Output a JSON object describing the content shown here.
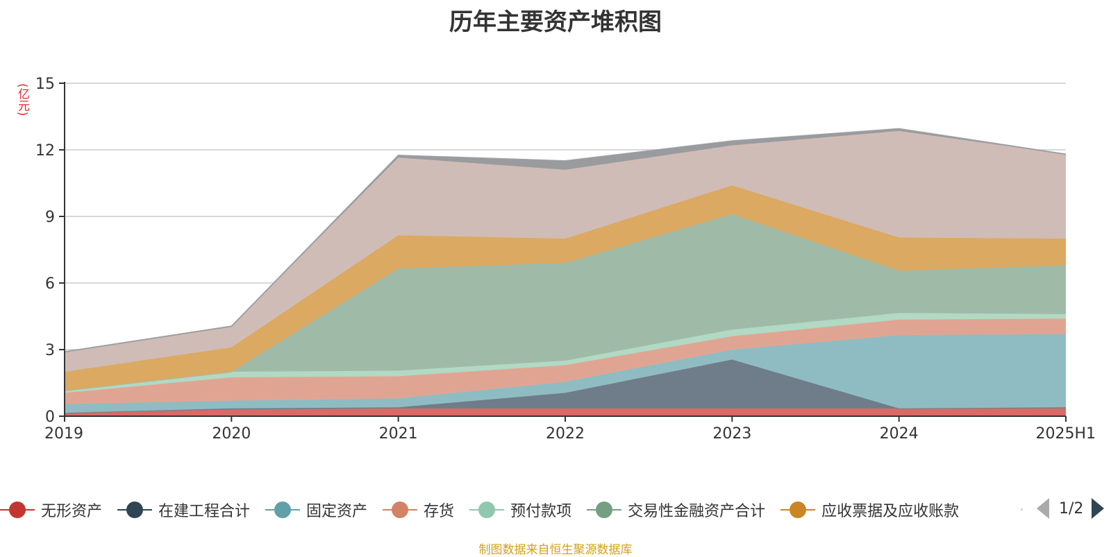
{
  "title": "历年主要资产堆积图",
  "y_unit": "(亿元)",
  "source": "制图数据来自恒生聚源数据库",
  "pager": {
    "text": "1/2"
  },
  "legend": [
    {
      "name": "无形资产",
      "color": "#c23531"
    },
    {
      "name": "在建工程合计",
      "color": "#2f4554"
    },
    {
      "name": "固定资产",
      "color": "#61a0a8"
    },
    {
      "name": "存货",
      "color": "#d48265"
    },
    {
      "name": "预付款项",
      "color": "#91c7ae"
    },
    {
      "name": "交易性金融资产合计",
      "color": "#749f83"
    },
    {
      "name": "应收票据及应收账款",
      "color": "#ca8622"
    }
  ],
  "chart_data": {
    "type": "area",
    "stacked": true,
    "ylim": [
      0,
      15
    ],
    "yticks": [
      0,
      3,
      6,
      9,
      12,
      15
    ],
    "grid": true,
    "categories": [
      "2019",
      "2020",
      "2021",
      "2022",
      "2023",
      "2024",
      "2025H1"
    ],
    "series": [
      {
        "name": "无形资产",
        "color": "#c23531",
        "fill": "#d96a66",
        "values": [
          0.15,
          0.3,
          0.35,
          0.35,
          0.35,
          0.35,
          0.35
        ]
      },
      {
        "name": "在建工程合计",
        "color": "#2f4554",
        "fill": "#6e7d89",
        "values": [
          0.0,
          0.05,
          0.05,
          0.7,
          2.2,
          0.0,
          0.05
        ]
      },
      {
        "name": "固定资产",
        "color": "#61a0a8",
        "fill": "#8fbcc2",
        "values": [
          0.4,
          0.35,
          0.4,
          0.5,
          0.45,
          3.3,
          3.3
        ]
      },
      {
        "name": "存货",
        "color": "#d48265",
        "fill": "#e0a592",
        "values": [
          0.5,
          1.05,
          1.0,
          0.75,
          0.6,
          0.7,
          0.7
        ]
      },
      {
        "name": "预付款项",
        "color": "#91c7ae",
        "fill": "#b1d9c4",
        "values": [
          0.1,
          0.25,
          0.25,
          0.2,
          0.3,
          0.3,
          0.2
        ]
      },
      {
        "name": "交易性金融资产合计",
        "color": "#749f83",
        "fill": "#9fbba8",
        "values": [
          0.0,
          0.0,
          4.6,
          4.4,
          5.2,
          1.9,
          2.2
        ]
      },
      {
        "name": "应收票据及应收账款",
        "color": "#ca8622",
        "fill": "#dba962",
        "values": [
          0.85,
          1.1,
          1.5,
          1.1,
          1.3,
          1.5,
          1.2
        ]
      },
      {
        "name": "",
        "color": "#bda29a",
        "fill": "#d0bcb6",
        "values": [
          0.9,
          0.95,
          3.5,
          3.1,
          1.8,
          4.8,
          3.8
        ]
      },
      {
        "name": "",
        "color": "#6e7074",
        "fill": "#9a9b9f",
        "values": [
          0.0,
          0.0,
          0.1,
          0.4,
          0.2,
          0.1,
          0.0
        ]
      }
    ]
  }
}
